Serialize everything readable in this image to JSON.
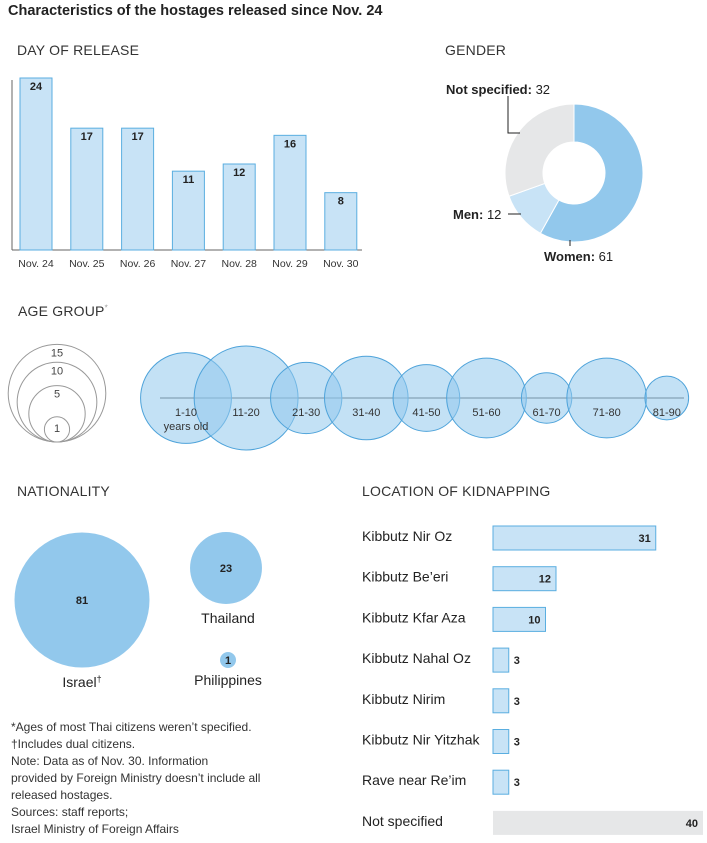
{
  "page_title": "Characteristics of the hostages released since Nov. 24",
  "colors": {
    "bar_fill": "#c8e3f6",
    "bar_stroke": "#5aaee0",
    "bubble_fill": "#92c8ec",
    "gray_fill": "#e6e7e8",
    "axis": "#666666"
  },
  "chart_data": [
    {
      "id": "day_of_release",
      "type": "bar",
      "title": "DAY OF RELEASE",
      "categories": [
        "Nov. 24",
        "Nov. 25",
        "Nov. 26",
        "Nov. 27",
        "Nov. 28",
        "Nov. 29",
        "Nov. 30"
      ],
      "values": [
        24,
        17,
        17,
        11,
        12,
        16,
        8
      ],
      "ylim": [
        0,
        24
      ]
    },
    {
      "id": "gender",
      "type": "pie",
      "title": "GENDER",
      "slices": [
        {
          "label": "Women",
          "value": 61
        },
        {
          "label": "Men",
          "value": 12
        },
        {
          "label": "Not specified",
          "value": 32
        }
      ]
    },
    {
      "id": "age_group",
      "type": "scatter",
      "title": "AGE GROUP",
      "title_marker": "*",
      "x_unit_note": "years old",
      "legend_sizes": [
        15,
        10,
        5,
        1
      ],
      "categories": [
        "1-10",
        "11-20",
        "21-30",
        "31-40",
        "41-50",
        "51-60",
        "61-70",
        "71-80",
        "81-90"
      ],
      "values": [
        13,
        17,
        8,
        11,
        7,
        10,
        4,
        10,
        3
      ]
    },
    {
      "id": "nationality",
      "type": "scatter",
      "title": "NATIONALITY",
      "items": [
        {
          "label": "Israel",
          "marker": "†",
          "value": 81
        },
        {
          "label": "Thailand",
          "value": 23
        },
        {
          "label": "Philippines",
          "value": 1
        }
      ]
    },
    {
      "id": "location",
      "type": "bar",
      "orientation": "horizontal",
      "title": "LOCATION OF KIDNAPPING",
      "categories": [
        "Kibbutz Nir Oz",
        "Kibbutz Be’eri",
        "Kibbutz Kfar Aza",
        "Kibbutz Nahal Oz",
        "Kibbutz Nirim",
        "Kibbutz Nir Yitzhak",
        "Rave near Re’im",
        "Not specified"
      ],
      "values": [
        31,
        12,
        10,
        3,
        3,
        3,
        3,
        40
      ],
      "xlim": [
        0,
        40
      ]
    }
  ],
  "footnotes": [
    "*Ages of most Thai citizens weren’t specified.",
    "†Includes dual citizens.",
    "Note: Data as of Nov. 30. Information",
    "provided by Foreign Ministry doesn’t include all",
    "released hostages.",
    "Sources: staff reports;",
    "Israel Ministry of Foreign Affairs"
  ]
}
